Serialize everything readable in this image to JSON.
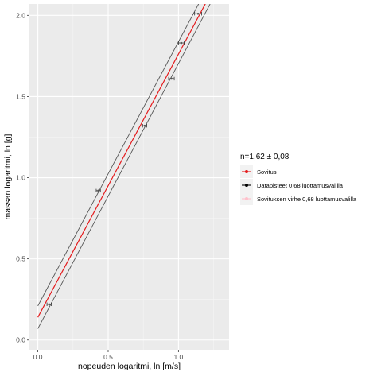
{
  "chart_data": {
    "type": "scatter",
    "xlabel": "nopeuden logaritmi, ln [m/s]",
    "ylabel": "massan logaritmi, ln [g]",
    "xlim": [
      -0.06,
      1.36
    ],
    "ylim": [
      -0.06,
      2.07
    ],
    "x_ticks": [
      0.0,
      0.5,
      1.0
    ],
    "x_tick_labels": [
      "0.0",
      "0.5",
      "1.0"
    ],
    "y_ticks": [
      0.0,
      0.5,
      1.0,
      1.5,
      2.0
    ],
    "y_tick_labels": [
      "0.0",
      "0.5",
      "1.0",
      "1.5",
      "2.0"
    ],
    "grid": true,
    "panel_background": "#ebebeb",
    "legend": {
      "position": "right",
      "title": "n=1,62 ± 0,08",
      "entries": [
        {
          "label": "Sovitus",
          "color": "#e41a1c"
        },
        {
          "label": "Datapisteet 0,68 luottamusvalilla",
          "color": "#000000"
        },
        {
          "label": "Sovituksen virhe 0,68 luottamusvalilla",
          "color": "#ffc0cb"
        }
      ]
    },
    "points": [
      {
        "x": 0.08,
        "y": 0.22,
        "xerr": 0.015
      },
      {
        "x": 0.43,
        "y": 0.92,
        "xerr": 0.015
      },
      {
        "x": 0.76,
        "y": 1.32,
        "xerr": 0.015
      },
      {
        "x": 0.95,
        "y": 1.61,
        "xerr": 0.02
      },
      {
        "x": 1.02,
        "y": 1.83,
        "xerr": 0.02
      },
      {
        "x": 1.14,
        "y": 2.01,
        "xerr": 0.025
      }
    ],
    "fit": {
      "x": [
        0.0,
        1.24
      ],
      "y": [
        0.14,
        2.15
      ],
      "color": "#e41a1c"
    },
    "fit_bounds": [
      {
        "x": [
          0.0,
          1.18
        ],
        "y": [
          0.21,
          2.13
        ],
        "color": "#555555"
      },
      {
        "x": [
          0.0,
          1.28
        ],
        "y": [
          0.07,
          2.16
        ],
        "color": "#555555"
      }
    ]
  }
}
